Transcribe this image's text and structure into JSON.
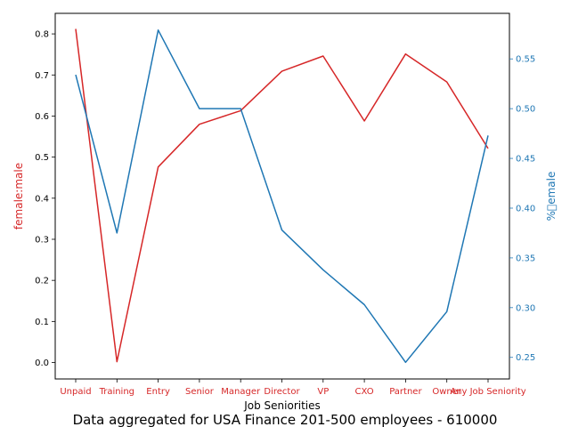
{
  "chart_data": {
    "type": "line",
    "title": "Data aggregated for USA Finance 201-500 employees - 610000",
    "xlabel": "Job Seniorities",
    "categories": [
      "Unpaid",
      "Training",
      "Entry",
      "Senior",
      "Manager",
      "Director",
      "VP",
      "CXO",
      "Partner",
      "Owner",
      "Any Job Seniority"
    ],
    "series": [
      {
        "name": "female:male",
        "axis": "left",
        "color": "#d62728",
        "values": [
          0.812,
          0.002,
          0.476,
          0.58,
          0.613,
          0.709,
          0.746,
          0.588,
          0.751,
          0.683,
          0.521
        ]
      },
      {
        "name": "%female",
        "axis": "right",
        "color": "#1f77b4",
        "values": [
          0.534,
          0.375,
          0.579,
          0.5,
          0.5,
          0.378,
          0.338,
          0.303,
          0.245,
          0.296,
          0.473
        ]
      }
    ],
    "yaxis_left": {
      "label": "female:male",
      "color": "#d62728",
      "lim": [
        -0.04,
        0.85
      ],
      "ticks": [
        "0.0",
        "0.1",
        "0.2",
        "0.3",
        "0.4",
        "0.5",
        "0.6",
        "0.7",
        "0.8"
      ],
      "tick_values": [
        0,
        0.1,
        0.2,
        0.3,
        0.4,
        0.5,
        0.6,
        0.7,
        0.8
      ]
    },
    "yaxis_right": {
      "label": "%\u0000emale",
      "color": "#1f77b4",
      "lim": [
        0.2283,
        0.5958
      ],
      "ticks": [
        "0.25",
        "0.30",
        "0.35",
        "0.40",
        "0.45",
        "0.50",
        "0.55"
      ],
      "tick_values": [
        0.25,
        0.3,
        0.35,
        0.4,
        0.45,
        0.5,
        0.55
      ]
    },
    "xtick_color": "#d62728",
    "grid": false
  }
}
